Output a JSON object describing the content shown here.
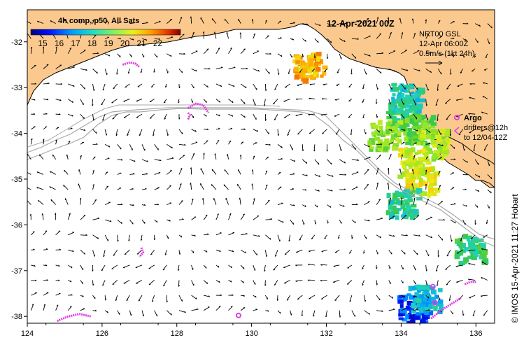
{
  "title": "12-Apr-2021 00Z",
  "colorbar": {
    "label": "4h comp, p50, All Sats",
    "ticks": [
      "15",
      "16",
      "17",
      "18",
      "19",
      "20",
      "21",
      "22"
    ]
  },
  "velocity_legend": {
    "line1": "NRT00 GSL",
    "line2": "12-Apr 06:00Z",
    "line3": "0.5m/s (1kt 24h)"
  },
  "argo_legend": {
    "label": "Argo",
    "line1": "drifters@12h",
    "line2": "to 12/04-12Z",
    "color": "#e040e0"
  },
  "credit": "© IMOS 15-Apr-2021 11:27 Hobart",
  "axes": {
    "x_ticks": [
      "124",
      "126",
      "128",
      "130",
      "132",
      "134",
      "136"
    ],
    "y_ticks": [
      "-32",
      "-33",
      "-34",
      "-35",
      "-36",
      "-37",
      "-38"
    ],
    "lon_range": [
      124,
      136.5
    ],
    "lat_range": [
      -31.3,
      -38.15
    ]
  },
  "colors": {
    "land": "#fbc98e",
    "ocean": "#ffffff",
    "contour": "#a8a8a8",
    "argo": "#e040e0"
  },
  "argo_tracks": [
    [
      [
        126.55,
        -32.5
      ],
      [
        126.75,
        -32.45
      ],
      [
        126.9,
        -32.48
      ],
      [
        127.0,
        -32.55
      ]
    ],
    [
      [
        128.3,
        -33.45
      ],
      [
        128.5,
        -33.35
      ],
      [
        128.7,
        -33.38
      ],
      [
        128.85,
        -33.55
      ]
    ],
    [
      [
        128.3,
        -33.55
      ],
      [
        128.35,
        -33.6
      ],
      [
        128.3,
        -33.7
      ]
    ],
    [
      [
        127.05,
        -36.5
      ],
      [
        127.1,
        -36.6
      ],
      [
        127.0,
        -36.7
      ]
    ],
    [
      [
        124.8,
        -38.1
      ],
      [
        125.1,
        -38.0
      ],
      [
        125.4,
        -37.95
      ],
      [
        125.7,
        -38.0
      ]
    ],
    [
      [
        134.8,
        -38.05
      ],
      [
        135.1,
        -37.85
      ],
      [
        135.4,
        -37.7
      ],
      [
        135.6,
        -37.6
      ]
    ],
    [
      [
        135.7,
        -37.3
      ],
      [
        135.85,
        -37.25
      ],
      [
        136.0,
        -37.25
      ]
    ]
  ],
  "argo_points": [
    [
      129.65,
      -37.98
    ],
    [
      134.85,
      -37.35
    ],
    [
      134.9,
      -37.7
    ]
  ],
  "sst_patches": [
    {
      "lon": 134.0,
      "lat": -33.6,
      "value": 17.8
    },
    {
      "lon": 134.4,
      "lat": -33.9,
      "value": 18.4
    },
    {
      "lon": 134.8,
      "lat": -34.2,
      "value": 19.3
    },
    {
      "lon": 134.3,
      "lat": -34.6,
      "value": 19.7
    },
    {
      "lon": 134.5,
      "lat": -35.0,
      "value": 19.9
    },
    {
      "lon": 133.5,
      "lat": -34.0,
      "value": 18.9
    },
    {
      "lon": 134.1,
      "lat": -33.2,
      "value": 17.0
    },
    {
      "lon": 131.5,
      "lat": -32.5,
      "value": 20.8
    },
    {
      "lon": 134.0,
      "lat": -35.5,
      "value": 17.3
    },
    {
      "lon": 135.8,
      "lat": -36.5,
      "value": 17.6
    },
    {
      "lon": 134.3,
      "lat": -37.8,
      "value": 15.4
    },
    {
      "lon": 134.6,
      "lat": -37.6,
      "value": 16.6
    }
  ]
}
